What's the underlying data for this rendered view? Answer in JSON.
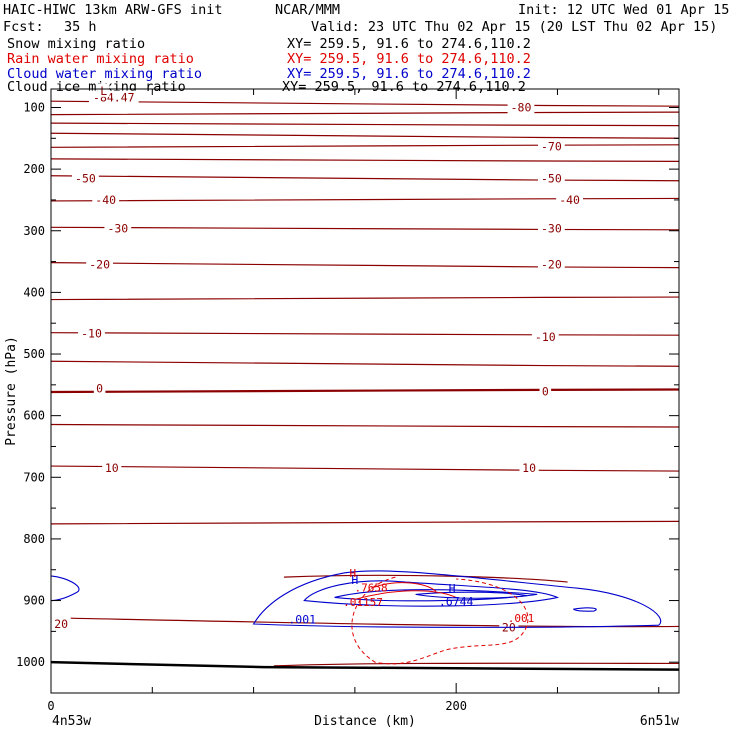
{
  "header": {
    "model": "HAIC-HIWC 13km ARW-GFS init",
    "org": "NCAR/MMM",
    "init": "Init: 12 UTC Wed 01 Apr 15",
    "fcst_label": "Fcst:",
    "fcst_value": "35 h",
    "valid": "Valid: 23 UTC Thu 02 Apr 15 (20 LST Thu 02 Apr 15)"
  },
  "fields": [
    {
      "name": "Snow mixing ratio",
      "xy": "XY= 259.5, 91.6 to 274.6,110.2",
      "color": "#000000"
    },
    {
      "name": "Rain water mixing ratio",
      "xy": "XY= 259.5, 91.6 to 274.6,110.2",
      "color": "#e00000"
    },
    {
      "name": "Cloud water mixing ratio",
      "xy": "XY= 259.5, 91.6 to 274.6,110.2",
      "color": "#0000cc"
    },
    {
      "name": "Cloud ice mixing ratio",
      "xy": "XY= 259.5, 91.6 to 274.6,110.2",
      "color": "#000000"
    }
  ],
  "chart_data": {
    "type": "line",
    "title": "",
    "xlabel": "Distance (km)",
    "ylabel": "Pressure (hPa)",
    "xlim": [
      0,
      310
    ],
    "ylim": [
      1050,
      70
    ],
    "x_ticks": [
      0,
      200
    ],
    "x_minor_ticks": [
      50,
      100,
      150,
      250,
      300
    ],
    "y_ticks": [
      100,
      200,
      300,
      400,
      500,
      600,
      700,
      800,
      900,
      1000
    ],
    "endpoint_labels": {
      "left": "4n53w",
      "right": "6n51w"
    },
    "colors": {
      "temperature": "#8b0000",
      "rain": "#e00000",
      "cloud_water": "#0000cc",
      "terrain": "#000000"
    },
    "temperature_isotherms": [
      {
        "label": "-80",
        "pressure": 93
      },
      {
        "label": "",
        "pressure": 110
      },
      {
        "label": "-80",
        "pressure": 127
      },
      {
        "label": "",
        "pressure": 145
      },
      {
        "label": "-70",
        "pressure": 163
      },
      {
        "label": "",
        "pressure": 185
      },
      {
        "label": "-50",
        "pressure": 214
      },
      {
        "label": "-40",
        "pressure": 250
      },
      {
        "label": "-30",
        "pressure": 296
      },
      {
        "label": "-20",
        "pressure": 355
      },
      {
        "label": "",
        "pressure": 410
      },
      {
        "label": "-10",
        "pressure": 467
      },
      {
        "label": "",
        "pressure": 515
      },
      {
        "label": "0",
        "pressure": 560
      },
      {
        "label": "",
        "pressure": 616
      },
      {
        "label": "10",
        "pressure": 685
      },
      {
        "label": "",
        "pressure": 774
      }
    ],
    "isotherm_label_positions": [
      {
        "label": "-80",
        "x": 232,
        "p": 100
      },
      {
        "label": "-84.47",
        "x": 31,
        "p": 84
      },
      {
        "label": "L",
        "x": 26,
        "p": 73
      },
      {
        "label": "-70",
        "x": 247,
        "p": 163
      },
      {
        "label": "-50",
        "x": 17,
        "p": 215
      },
      {
        "label": "-50",
        "x": 247,
        "p": 215
      },
      {
        "label": "-40",
        "x": 27,
        "p": 250
      },
      {
        "label": "-40",
        "x": 256,
        "p": 250
      },
      {
        "label": "-30",
        "x": 33,
        "p": 296
      },
      {
        "label": "-30",
        "x": 247,
        "p": 296
      },
      {
        "label": "-20",
        "x": 24,
        "p": 355
      },
      {
        "label": "-20",
        "x": 247,
        "p": 355
      },
      {
        "label": "-10",
        "x": 20,
        "p": 467
      },
      {
        "label": "-10",
        "x": 244,
        "p": 472
      },
      {
        "label": "0",
        "x": 24,
        "p": 556
      },
      {
        "label": "0",
        "x": 244,
        "p": 561
      },
      {
        "label": "10",
        "x": 30,
        "p": 685
      },
      {
        "label": "10",
        "x": 236,
        "p": 685
      },
      {
        "label": "20",
        "x": 5,
        "p": 938
      },
      {
        "label": "20",
        "x": 226,
        "p": 944
      }
    ],
    "rain_labels": [
      {
        "label": ".7658",
        "x": 158,
        "p": 885
      },
      {
        "label": ".01157",
        "x": 154,
        "p": 909
      },
      {
        "label": ".001",
        "x": 232,
        "p": 935
      },
      {
        "label": "H",
        "x": 149,
        "p": 862
      }
    ],
    "cloud_labels": [
      {
        "label": "H",
        "x": 150,
        "p": 873
      },
      {
        "label": "H",
        "x": 198,
        "p": 887
      },
      {
        "label": ".6744",
        "x": 200,
        "p": 908
      },
      {
        "label": ".001",
        "x": 124,
        "p": 937
      }
    ],
    "terrain_pressure": [
      1000,
      1012
    ]
  }
}
